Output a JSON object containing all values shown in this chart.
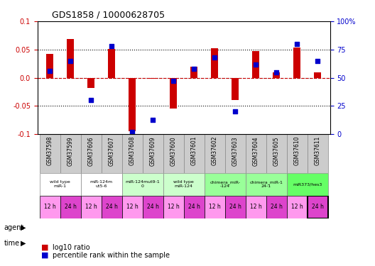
{
  "title": "GDS1858 / 10000628705",
  "samples": [
    "GSM37598",
    "GSM37599",
    "GSM37606",
    "GSM37607",
    "GSM37608",
    "GSM37609",
    "GSM37600",
    "GSM37601",
    "GSM37602",
    "GSM37603",
    "GSM37604",
    "GSM37605",
    "GSM37610",
    "GSM37611"
  ],
  "log10_ratio": [
    0.042,
    0.068,
    -0.018,
    0.051,
    -0.095,
    -0.002,
    -0.055,
    0.02,
    0.052,
    -0.04,
    0.047,
    0.01,
    0.053,
    0.01
  ],
  "percentile_rank": [
    56,
    65,
    30,
    78,
    2,
    13,
    47,
    58,
    68,
    20,
    62,
    55,
    80,
    65
  ],
  "bar_color": "#cc0000",
  "dot_color": "#0000cc",
  "ylim": [
    -0.1,
    0.1
  ],
  "y2lim": [
    0,
    100
  ],
  "yticks": [
    -0.1,
    -0.05,
    0.0,
    0.05,
    0.1
  ],
  "y2ticks": [
    0,
    25,
    50,
    75,
    100
  ],
  "dotted_lines": [
    -0.05,
    0.0,
    0.05
  ],
  "agent_groups": [
    {
      "label": "wild type\nmiR-1",
      "cols": [
        0,
        1
      ],
      "color": "#ffffff"
    },
    {
      "label": "miR-124m\nut5-6",
      "cols": [
        2,
        3
      ],
      "color": "#ffffff"
    },
    {
      "label": "miR-124mut9-1\n0",
      "cols": [
        4,
        5
      ],
      "color": "#ccffcc"
    },
    {
      "label": "wild type\nmiR-124",
      "cols": [
        6,
        7
      ],
      "color": "#ccffcc"
    },
    {
      "label": "chimera_miR-\n-124",
      "cols": [
        8,
        9
      ],
      "color": "#99ff99"
    },
    {
      "label": "chimera_miR-1\n24-1",
      "cols": [
        10,
        11
      ],
      "color": "#99ff99"
    },
    {
      "label": "miR373/hes3",
      "cols": [
        12,
        13
      ],
      "color": "#66ff66"
    }
  ],
  "time_labels": [
    "12 h",
    "24 h",
    "12 h",
    "24 h",
    "12 h",
    "24 h",
    "12 h",
    "24 h",
    "12 h",
    "24 h",
    "12 h",
    "24 h",
    "12 h",
    "24 h"
  ],
  "time_colors": [
    "#ff99ff",
    "#ff66ff",
    "#ff99ff",
    "#ff66ff",
    "#ff99ff",
    "#ff66ff",
    "#ff99ff",
    "#ff66ff",
    "#ff99ff",
    "#ff66ff",
    "#ff99ff",
    "#ff66ff",
    "#ff99ff",
    "#ff66ff"
  ],
  "legend_red": "log10 ratio",
  "legend_blue": "percentile rank within the sample",
  "xlabel_color_left": "#cc0000",
  "xlabel_color_right": "#0000cc",
  "ylabel_left_color": "#cc0000",
  "ylabel_right_color": "#0000cc",
  "sample_bg_color": "#cccccc",
  "sample_border_color": "#888888"
}
